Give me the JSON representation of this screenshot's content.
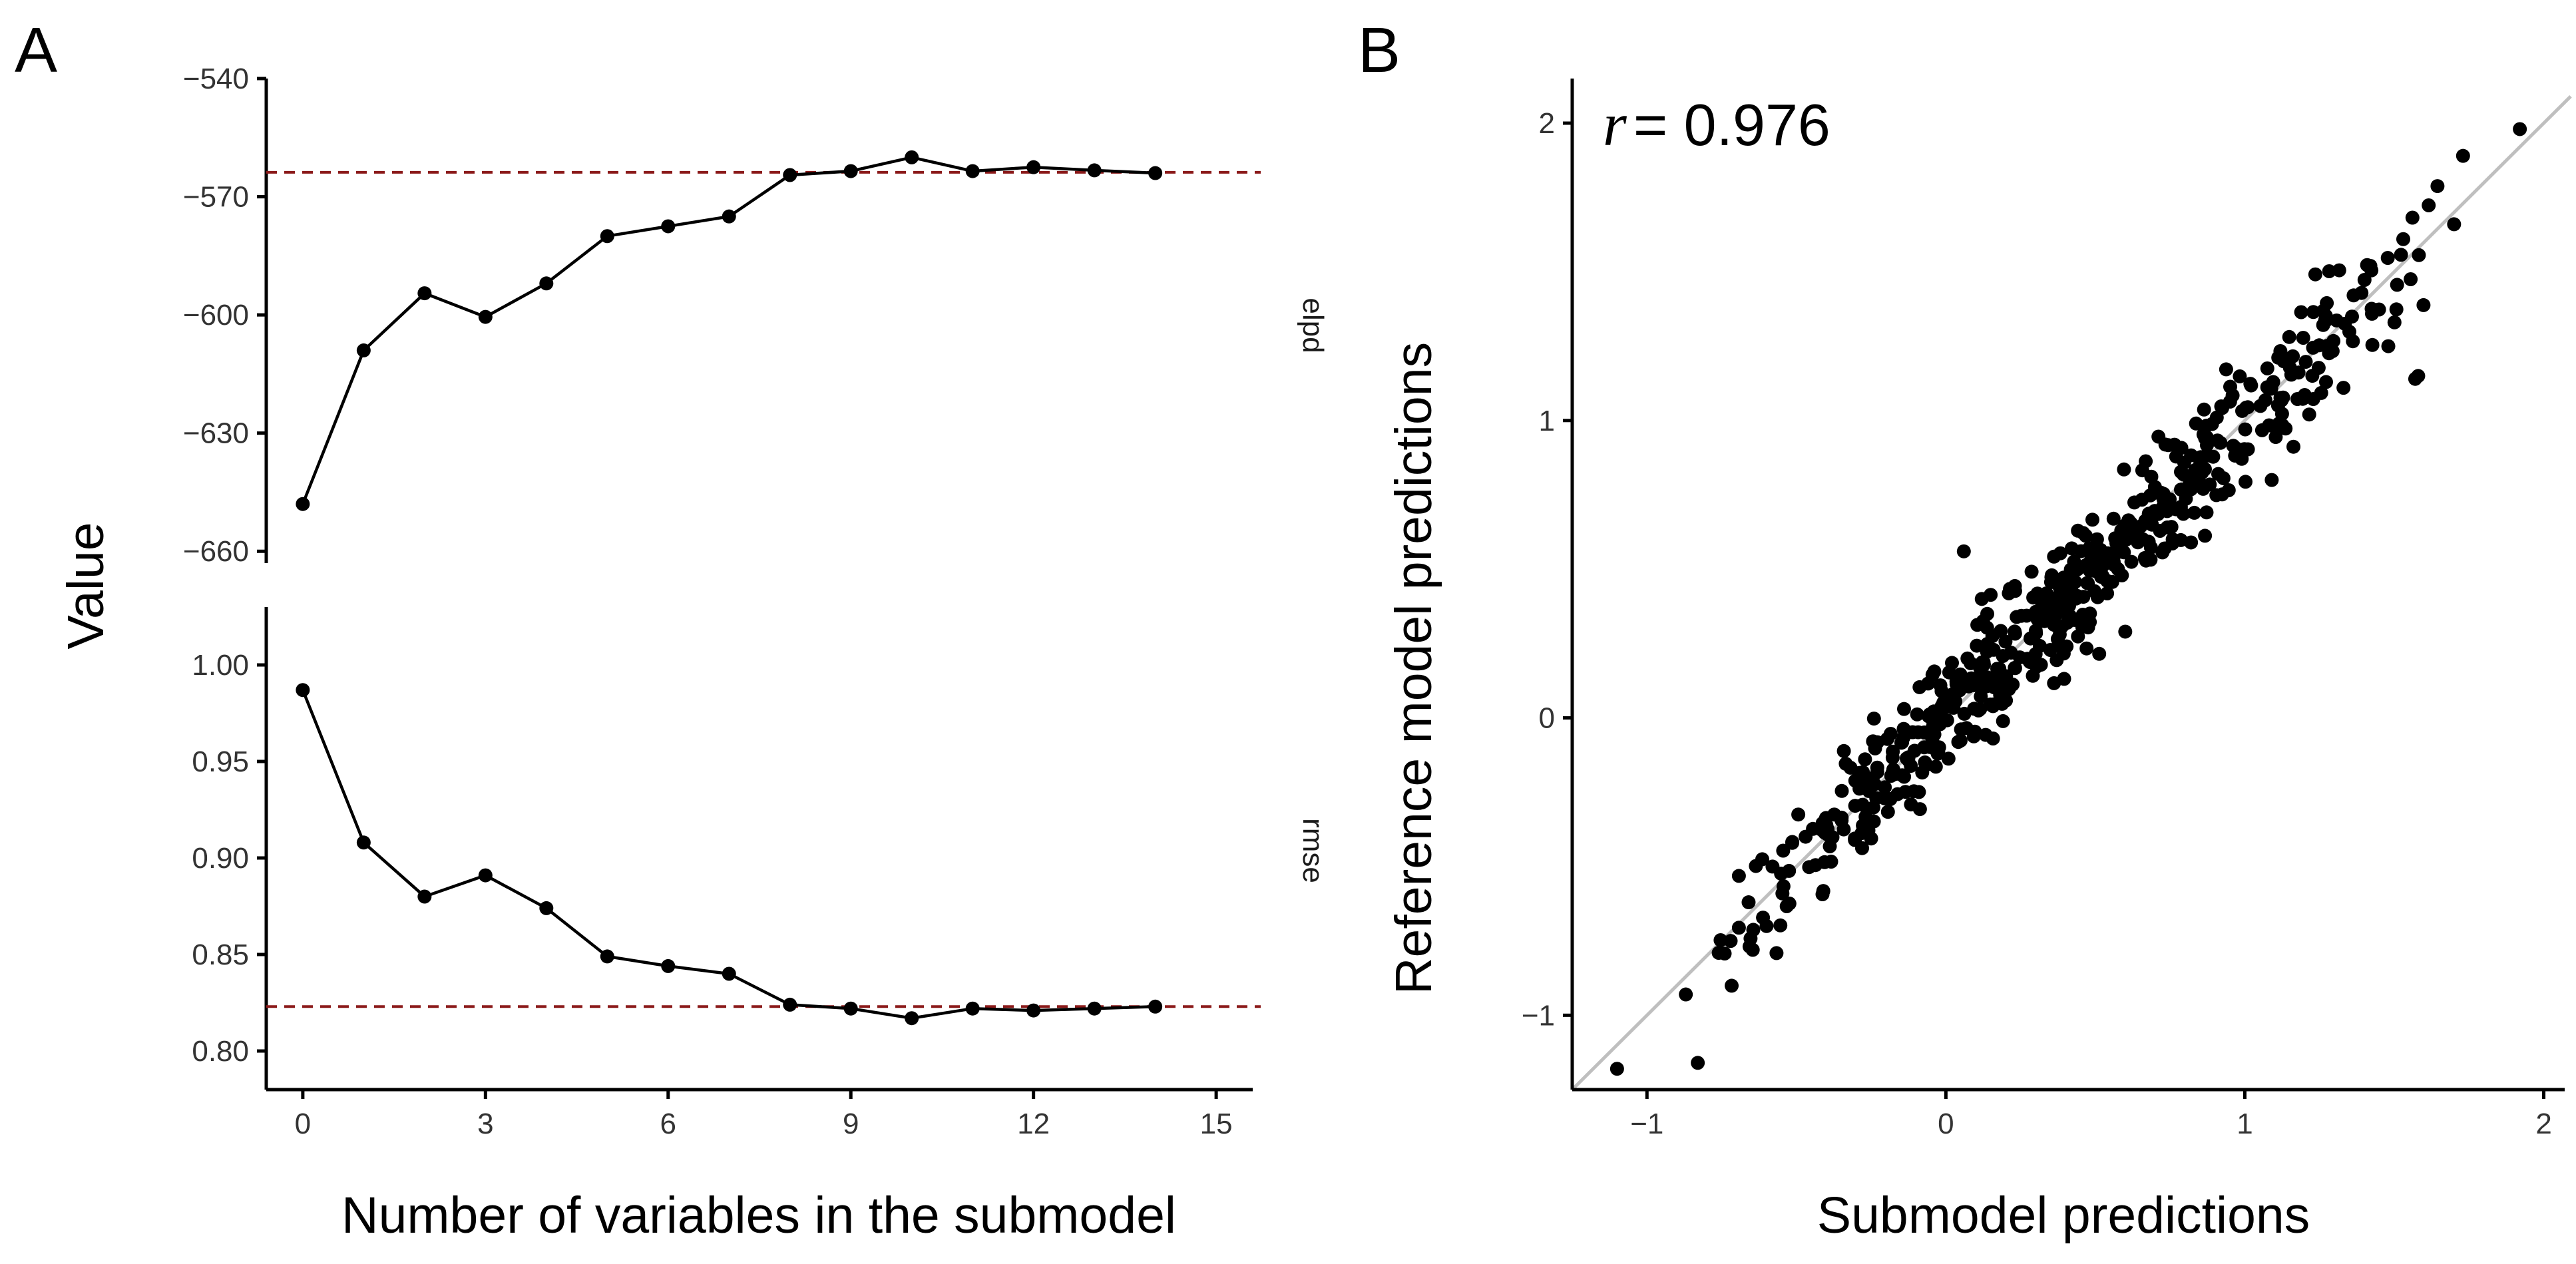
{
  "panels": {
    "a_letter": "A",
    "b_letter": "B"
  },
  "chart_data": [
    {
      "type": "line",
      "panel": "A",
      "ylabel": "Value",
      "xlabel": "Number of variables in the submodel",
      "x_ticks": [
        0,
        3,
        6,
        9,
        12,
        15
      ],
      "xlim": [
        -0.6,
        15.6
      ],
      "facets": [
        {
          "name": "elpd",
          "label": "elpd",
          "ylim": [
            -663,
            -540
          ],
          "y_ticks": [
            -540,
            -570,
            -600,
            -630,
            -660
          ],
          "y_tick_labels": [
            "−540",
            "−570",
            "−600",
            "−630",
            "−660"
          ],
          "reference_line": -563.8,
          "reference_color": "#8b1a1a",
          "x": [
            0,
            1,
            2,
            3,
            4,
            5,
            6,
            7,
            8,
            9,
            10,
            11,
            12,
            13,
            14
          ],
          "values": [
            -648.0,
            -609.0,
            -594.5,
            -600.5,
            -592.0,
            -580.0,
            -577.5,
            -575.0,
            -564.5,
            -563.5,
            -560.0,
            -563.5,
            -562.5,
            -563.3,
            -564.0
          ]
        },
        {
          "name": "rmse",
          "label": "rmse",
          "ylim": [
            0.78,
            1.03
          ],
          "y_ticks": [
            1.0,
            0.95,
            0.9,
            0.85,
            0.8
          ],
          "y_tick_labels": [
            "1.00",
            "0.95",
            "0.90",
            "0.85",
            "0.80"
          ],
          "reference_line": 0.823,
          "reference_color": "#8b1a1a",
          "x": [
            0,
            1,
            2,
            3,
            4,
            5,
            6,
            7,
            8,
            9,
            10,
            11,
            12,
            13,
            14
          ],
          "values": [
            0.987,
            0.908,
            0.88,
            0.891,
            0.874,
            0.849,
            0.844,
            0.84,
            0.824,
            0.822,
            0.817,
            0.822,
            0.821,
            0.822,
            0.823
          ]
        }
      ]
    },
    {
      "type": "scatter",
      "panel": "B",
      "xlabel": "Submodel predictions",
      "ylabel": "Reference model predictions",
      "xlim": [
        -1.25,
        2.07
      ],
      "ylim": [
        -1.25,
        2.15
      ],
      "x_ticks": [
        -1,
        0,
        1,
        2
      ],
      "x_tick_labels": [
        "−1",
        "0",
        "1",
        "2"
      ],
      "y_ticks": [
        -1,
        0,
        1,
        2
      ],
      "y_tick_labels": [
        "−1",
        "0",
        "1",
        "2"
      ],
      "identity_line": {
        "slope": 1,
        "intercept": 0,
        "color": "#bfbfbf"
      },
      "annotation_symbol": "r",
      "annotation_text": "= 0.976",
      "points": [
        {
          "x": -1.1,
          "y": -1.18
        },
        {
          "x": -0.87,
          "y": -0.93
        },
        {
          "x": -0.83,
          "y": -1.16
        },
        {
          "x": 1.92,
          "y": 1.98
        },
        {
          "x": 1.73,
          "y": 1.89
        },
        {
          "x": 1.7,
          "y": 1.66
        },
        {
          "x": 1.58,
          "y": 1.15
        },
        {
          "x": 1.57,
          "y": 1.14
        },
        {
          "x": 1.48,
          "y": 1.25
        },
        {
          "x": 1.33,
          "y": 1.11
        },
        {
          "x": 1.53,
          "y": 1.61
        },
        {
          "x": 1.42,
          "y": 1.52
        },
        {
          "x": -0.76,
          "y": -0.79
        },
        {
          "x": -0.72,
          "y": -0.75
        },
        {
          "x": -0.66,
          "y": -0.62
        },
        {
          "x": -0.6,
          "y": -0.7
        },
        {
          "x": -0.58,
          "y": -0.5
        },
        {
          "x": 0.82,
          "y": 0.59
        },
        {
          "x": 1.09,
          "y": 0.8
        },
        {
          "x": 0.6,
          "y": 0.29
        },
        {
          "x": -0.14,
          "y": 0.03
        },
        {
          "x": 0.12,
          "y": 0.4
        },
        {
          "x": 0.06,
          "y": 0.56
        }
      ],
      "trend": {
        "seed": 97531,
        "count": 560,
        "x_min": -0.78,
        "x_max": 1.66,
        "center": 0.38,
        "spread": 0.62,
        "noise_sd": 0.105
      }
    }
  ]
}
